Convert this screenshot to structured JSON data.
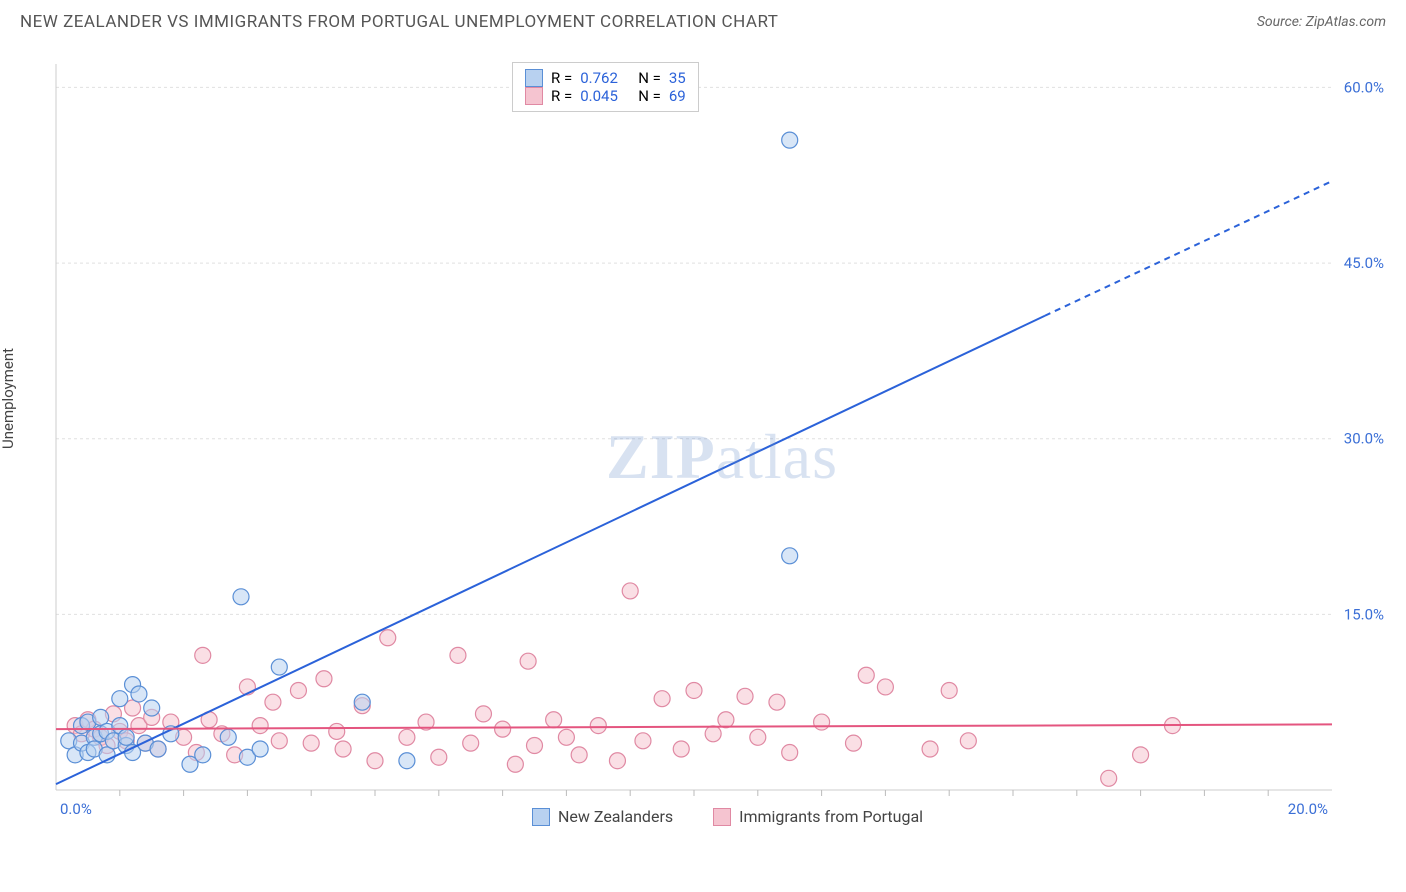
{
  "title": "NEW ZEALANDER VS IMMIGRANTS FROM PORTUGAL UNEMPLOYMENT CORRELATION CHART",
  "source": "Source: ZipAtlas.com",
  "ylabel": "Unemployment",
  "watermark_a": "ZIP",
  "watermark_b": "atlas",
  "chart": {
    "type": "scatter-with-regression",
    "background_color": "#ffffff",
    "grid_color": "#e0e0e0",
    "axis_color": "#cccccc",
    "tick_color": "#bbbbbb",
    "label_color": "#3b6fd6",
    "xlim": [
      0,
      20
    ],
    "ylim": [
      0,
      62
    ],
    "xticks": [
      0,
      20
    ],
    "xtick_labels": [
      "0.0%",
      "20.0%"
    ],
    "yticks": [
      15,
      30,
      45,
      60
    ],
    "ytick_labels": [
      "15.0%",
      "30.0%",
      "45.0%",
      "60.0%"
    ],
    "x_minor_step": 1,
    "marker_radius": 8,
    "marker_stroke_width": 1.2,
    "line_width": 2,
    "series": [
      {
        "name": "New Zealanders",
        "fill": "#b8d1f0",
        "fill_opacity": 0.55,
        "stroke": "#5a8fd6",
        "line_color": "#2b62d9",
        "R": "0.762",
        "N": "35",
        "regression": {
          "x1": 0,
          "y1": 0.5,
          "x2": 15.5,
          "y2": 40.5,
          "x3": 20,
          "y3": 52
        },
        "points": [
          [
            0.2,
            4.2
          ],
          [
            0.3,
            3.0
          ],
          [
            0.4,
            5.5
          ],
          [
            0.4,
            4.0
          ],
          [
            0.5,
            3.2
          ],
          [
            0.5,
            5.8
          ],
          [
            0.6,
            4.5
          ],
          [
            0.6,
            3.5
          ],
          [
            0.7,
            6.2
          ],
          [
            0.7,
            4.8
          ],
          [
            0.8,
            3.0
          ],
          [
            0.8,
            5.0
          ],
          [
            0.9,
            4.2
          ],
          [
            1.0,
            7.8
          ],
          [
            1.0,
            5.5
          ],
          [
            1.1,
            3.8
          ],
          [
            1.1,
            4.5
          ],
          [
            1.2,
            9.0
          ],
          [
            1.2,
            3.2
          ],
          [
            1.3,
            8.2
          ],
          [
            1.4,
            4.0
          ],
          [
            1.5,
            7.0
          ],
          [
            1.6,
            3.5
          ],
          [
            1.8,
            4.8
          ],
          [
            2.1,
            2.2
          ],
          [
            2.3,
            3.0
          ],
          [
            2.7,
            4.5
          ],
          [
            2.9,
            16.5
          ],
          [
            3.0,
            2.8
          ],
          [
            3.2,
            3.5
          ],
          [
            3.5,
            10.5
          ],
          [
            4.8,
            7.5
          ],
          [
            5.5,
            2.5
          ],
          [
            11.5,
            20.0
          ],
          [
            11.5,
            55.5
          ]
        ]
      },
      {
        "name": "Immigrants from Portugal",
        "fill": "#f5c4d0",
        "fill_opacity": 0.55,
        "stroke": "#e089a3",
        "line_color": "#e4557f",
        "R": "0.045",
        "N": "69",
        "regression": {
          "x1": 0,
          "y1": 5.2,
          "x2": 20,
          "y2": 5.6
        },
        "points": [
          [
            0.3,
            5.5
          ],
          [
            0.4,
            4.8
          ],
          [
            0.5,
            6.0
          ],
          [
            0.6,
            5.2
          ],
          [
            0.7,
            4.5
          ],
          [
            0.8,
            3.8
          ],
          [
            0.9,
            6.5
          ],
          [
            1.0,
            5.0
          ],
          [
            1.1,
            4.2
          ],
          [
            1.2,
            7.0
          ],
          [
            1.3,
            5.5
          ],
          [
            1.4,
            4.0
          ],
          [
            1.5,
            6.2
          ],
          [
            1.6,
            3.5
          ],
          [
            1.8,
            5.8
          ],
          [
            2.0,
            4.5
          ],
          [
            2.2,
            3.2
          ],
          [
            2.3,
            11.5
          ],
          [
            2.4,
            6.0
          ],
          [
            2.6,
            4.8
          ],
          [
            2.8,
            3.0
          ],
          [
            3.0,
            8.8
          ],
          [
            3.2,
            5.5
          ],
          [
            3.4,
            7.5
          ],
          [
            3.5,
            4.2
          ],
          [
            3.8,
            8.5
          ],
          [
            4.0,
            4.0
          ],
          [
            4.2,
            9.5
          ],
          [
            4.4,
            5.0
          ],
          [
            4.5,
            3.5
          ],
          [
            4.8,
            7.2
          ],
          [
            5.0,
            2.5
          ],
          [
            5.2,
            13.0
          ],
          [
            5.5,
            4.5
          ],
          [
            5.8,
            5.8
          ],
          [
            6.0,
            2.8
          ],
          [
            6.3,
            11.5
          ],
          [
            6.5,
            4.0
          ],
          [
            6.7,
            6.5
          ],
          [
            7.0,
            5.2
          ],
          [
            7.2,
            2.2
          ],
          [
            7.4,
            11.0
          ],
          [
            7.5,
            3.8
          ],
          [
            7.8,
            6.0
          ],
          [
            8.0,
            4.5
          ],
          [
            8.2,
            3.0
          ],
          [
            8.5,
            5.5
          ],
          [
            8.8,
            2.5
          ],
          [
            9.0,
            17.0
          ],
          [
            9.2,
            4.2
          ],
          [
            9.5,
            7.8
          ],
          [
            9.8,
            3.5
          ],
          [
            10.0,
            8.5
          ],
          [
            10.3,
            4.8
          ],
          [
            10.5,
            6.0
          ],
          [
            10.8,
            8.0
          ],
          [
            11.0,
            4.5
          ],
          [
            11.3,
            7.5
          ],
          [
            11.5,
            3.2
          ],
          [
            12.0,
            5.8
          ],
          [
            12.5,
            4.0
          ],
          [
            12.7,
            9.8
          ],
          [
            13.0,
            8.8
          ],
          [
            13.7,
            3.5
          ],
          [
            14.0,
            8.5
          ],
          [
            14.3,
            4.2
          ],
          [
            16.5,
            1.0
          ],
          [
            17.0,
            3.0
          ],
          [
            17.5,
            5.5
          ]
        ]
      }
    ]
  },
  "legend_top": {
    "R_label": "R =",
    "N_label": "N =",
    "value_color": "#2b62d9"
  },
  "legend_bottom": {
    "items": [
      "New Zealanders",
      "Immigrants from Portugal"
    ]
  }
}
